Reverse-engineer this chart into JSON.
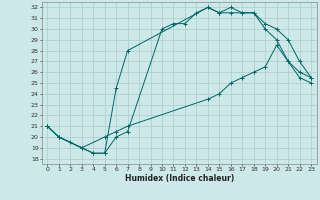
{
  "xlabel": "Humidex (Indice chaleur)",
  "bg_color": "#cce8e8",
  "grid_color": "#aacccc",
  "line_color": "#006666",
  "xlim": [
    -0.5,
    23.5
  ],
  "ylim": [
    17.5,
    32.5
  ],
  "xticks": [
    0,
    1,
    2,
    3,
    4,
    5,
    6,
    7,
    8,
    9,
    10,
    11,
    12,
    13,
    14,
    15,
    16,
    17,
    18,
    19,
    20,
    21,
    22,
    23
  ],
  "yticks": [
    18,
    19,
    20,
    21,
    22,
    23,
    24,
    25,
    26,
    27,
    28,
    29,
    30,
    31,
    32
  ],
  "line1": {
    "x": [
      0,
      1,
      2,
      3,
      4,
      5,
      6,
      7,
      10,
      11,
      12,
      13,
      14,
      15,
      16,
      17,
      18,
      19,
      20,
      21,
      22,
      23
    ],
    "y": [
      21,
      20,
      19.5,
      19,
      18.5,
      18.5,
      20,
      20.5,
      30,
      30.5,
      30.5,
      31.5,
      32,
      31.5,
      32,
      31.5,
      31.5,
      30.5,
      30,
      29,
      27,
      25.5
    ]
  },
  "line2": {
    "x": [
      0,
      1,
      3,
      4,
      5,
      6,
      7,
      14,
      15,
      16,
      17,
      18,
      19,
      20,
      21,
      22,
      23
    ],
    "y": [
      21,
      20,
      19,
      18.5,
      18.5,
      24.5,
      28,
      32,
      31.5,
      31.5,
      31.5,
      31.5,
      30,
      29,
      27,
      25.5,
      25
    ]
  },
  "line3": {
    "x": [
      0,
      1,
      3,
      5,
      6,
      7,
      14,
      15,
      16,
      17,
      18,
      19,
      20,
      21,
      22,
      23
    ],
    "y": [
      21,
      20,
      19,
      20,
      20.5,
      21,
      23.5,
      24,
      25,
      25.5,
      26,
      26.5,
      28.5,
      27,
      26,
      25.5
    ]
  }
}
